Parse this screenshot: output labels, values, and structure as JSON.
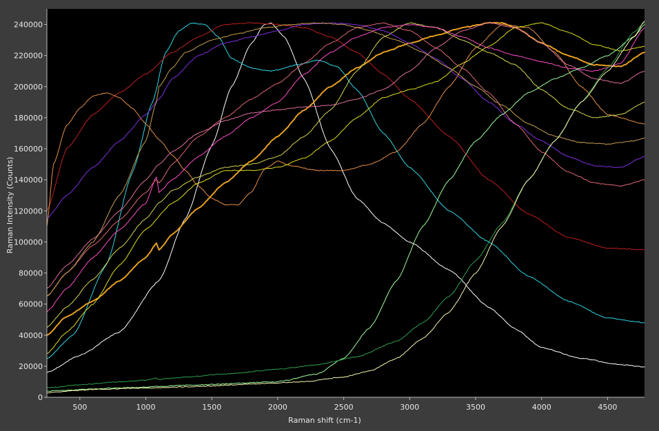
{
  "chart_data": {
    "type": "line",
    "title": "",
    "xlabel": "Raman shift (cm-1)",
    "ylabel": "Raman Intensity (Counts)",
    "xlim": [
      250,
      4780
    ],
    "ylim": [
      0,
      250000
    ],
    "x_ticks": [
      500,
      1000,
      1500,
      2000,
      2500,
      3000,
      3500,
      4000,
      4500
    ],
    "x_tick_labels": [
      "500",
      "1000",
      "1500",
      "2000",
      "2500",
      "3000",
      "3500",
      "4000",
      "4500"
    ],
    "y_ticks": [
      0,
      20000,
      40000,
      60000,
      80000,
      100000,
      120000,
      140000,
      160000,
      180000,
      200000,
      220000,
      240000
    ],
    "y_tick_labels": [
      "0",
      "20000",
      "40000",
      "60000",
      "80000",
      "100000",
      "120000",
      "140000",
      "160000",
      "180000",
      "200000",
      "220000",
      "240000"
    ],
    "background": "#000000",
    "grid": false,
    "legend": "none",
    "series": [
      {
        "color": "#ffffff",
        "width": 1,
        "x": [
          250,
          500,
          800,
          1100,
          1300,
          1500,
          1650,
          1800,
          1900,
          1950,
          2050,
          2200,
          2400,
          2600,
          2800,
          3000,
          3300,
          3600,
          3800,
          4000,
          4300,
          4600,
          4780
        ],
        "y": [
          16000,
          27000,
          42000,
          75000,
          115000,
          162000,
          200000,
          228000,
          240000,
          241000,
          232000,
          205000,
          160000,
          128000,
          112000,
          100000,
          82000,
          58000,
          44000,
          32000,
          25000,
          21000,
          19500
        ]
      },
      {
        "color": "#30d8e8",
        "width": 1,
        "x": [
          250,
          450,
          700,
          900,
          1050,
          1150,
          1250,
          1350,
          1450,
          1550,
          1650,
          1800,
          1950,
          2150,
          2300,
          2450,
          2600,
          2800,
          3000,
          3300,
          3600,
          3900,
          4200,
          4500,
          4780
        ],
        "y": [
          25000,
          40000,
          85000,
          145000,
          190000,
          222000,
          236000,
          241000,
          240000,
          232000,
          218000,
          212000,
          210000,
          214000,
          217000,
          213000,
          198000,
          170000,
          148000,
          120000,
          100000,
          78000,
          62000,
          51000,
          48000
        ]
      },
      {
        "color": "#c02020",
        "width": 1,
        "x": [
          250,
          400,
          600,
          800,
          1000,
          1200,
          1400,
          1600,
          1800,
          2000,
          2200,
          2400,
          2600,
          2800,
          3000,
          3300,
          3600,
          3900,
          4200,
          4500,
          4780
        ],
        "y": [
          120000,
          160000,
          182000,
          196000,
          208000,
          222000,
          232000,
          240000,
          241000,
          240000,
          238000,
          232000,
          222000,
          208000,
          192000,
          168000,
          140000,
          118000,
          103000,
          96000,
          95000
        ]
      },
      {
        "color": "#e89048",
        "width": 1,
        "x": [
          250,
          300,
          400,
          500,
          600,
          700,
          800,
          900,
          1000,
          1100,
          1200,
          1300,
          1400,
          1500,
          1600,
          1700,
          1800,
          1900,
          2000,
          2100,
          2300,
          2500,
          2700,
          2900,
          3100,
          3300,
          3500,
          3700,
          3900,
          4100,
          4300,
          4500,
          4780
        ],
        "y": [
          110000,
          150000,
          175000,
          186000,
          194000,
          196000,
          193000,
          186000,
          176000,
          166000,
          156000,
          146000,
          136000,
          128000,
          124000,
          124000,
          132000,
          147000,
          152000,
          149000,
          146000,
          146000,
          150000,
          158000,
          176000,
          200000,
          225000,
          240000,
          238000,
          222000,
          200000,
          182000,
          176000
        ]
      },
      {
        "color": "#e8a020",
        "width": 2,
        "x": [
          250,
          400,
          600,
          800,
          1000,
          1080,
          1100,
          1200,
          1400,
          1600,
          1800,
          2000,
          2200,
          2400,
          2600,
          2800,
          3000,
          3200,
          3400,
          3600,
          3700,
          3800,
          4000,
          4200,
          4400,
          4600,
          4780
        ],
        "y": [
          40000,
          52000,
          62000,
          75000,
          90000,
          99000,
          95000,
          105000,
          122000,
          138000,
          152000,
          168000,
          185000,
          200000,
          212000,
          222000,
          228000,
          233000,
          238000,
          241000,
          241000,
          238000,
          228000,
          220000,
          214000,
          213000,
          222000
        ]
      },
      {
        "color": "#e0e020",
        "width": 1,
        "x": [
          250,
          400,
          600,
          800,
          1000,
          1200,
          1400,
          1600,
          1800,
          2000,
          2200,
          2400,
          2600,
          2800,
          3000,
          3200,
          3400,
          3600,
          3800,
          4000,
          4200,
          4400,
          4600,
          4780
        ],
        "y": [
          28000,
          42000,
          60000,
          85000,
          108000,
          125000,
          138000,
          146000,
          146000,
          148000,
          154000,
          165000,
          180000,
          193000,
          198000,
          203000,
          215000,
          226000,
          238000,
          241000,
          235000,
          227000,
          223000,
          226000
        ]
      },
      {
        "color": "#d8d850",
        "width": 1,
        "x": [
          250,
          400,
          600,
          800,
          1000,
          1100,
          1200,
          1400,
          1600,
          1800,
          2000,
          2200,
          2400,
          2600,
          2800,
          3000,
          3200,
          3400,
          3600,
          3800,
          4000,
          4200,
          4400,
          4600,
          4780
        ],
        "y": [
          45000,
          58000,
          76000,
          96000,
          115000,
          125000,
          133000,
          142000,
          148000,
          150000,
          155000,
          168000,
          185000,
          210000,
          232000,
          241000,
          238000,
          230000,
          222000,
          214000,
          198000,
          186000,
          180000,
          182000,
          190000
        ]
      },
      {
        "color": "#ff50c8",
        "width": 1,
        "x": [
          250,
          400,
          600,
          800,
          1000,
          1080,
          1100,
          1200,
          1400,
          1600,
          1800,
          2000,
          2200,
          2400,
          2600,
          2800,
          3000,
          3200,
          3400,
          3600,
          3800,
          4000,
          4200,
          4400,
          4600,
          4780
        ],
        "y": [
          55000,
          70000,
          90000,
          108000,
          125000,
          142000,
          132000,
          140000,
          155000,
          168000,
          180000,
          190000,
          208000,
          222000,
          232000,
          238000,
          240000,
          238000,
          232000,
          225000,
          220000,
          216000,
          212000,
          210000,
          215000,
          238000
        ]
      },
      {
        "color": "#e070a0",
        "width": 1,
        "x": [
          250,
          400,
          600,
          800,
          1000,
          1100,
          1200,
          1400,
          1600,
          1800,
          2000,
          2200,
          2400,
          2600,
          2800,
          3000,
          3200,
          3400,
          3600,
          3800,
          4000,
          4200,
          4400,
          4600,
          4780
        ],
        "y": [
          70000,
          85000,
          102000,
          120000,
          140000,
          150000,
          158000,
          170000,
          178000,
          183000,
          185000,
          187000,
          188000,
          192000,
          198000,
          210000,
          225000,
          236000,
          241000,
          238000,
          228000,
          214000,
          205000,
          202000,
          210000
        ]
      },
      {
        "color": "#8030e0",
        "width": 1,
        "x": [
          250,
          400,
          600,
          800,
          1000,
          1100,
          1200,
          1400,
          1600,
          1800,
          2000,
          2200,
          2400,
          2600,
          2800,
          3000,
          3200,
          3400,
          3600,
          3800,
          4000,
          4200,
          4400,
          4600,
          4780
        ],
        "y": [
          115000,
          130000,
          148000,
          165000,
          182000,
          192000,
          205000,
          220000,
          228000,
          232000,
          236000,
          240000,
          241000,
          240000,
          236000,
          228000,
          218000,
          205000,
          190000,
          176000,
          165000,
          155000,
          149000,
          148000,
          155000
        ]
      },
      {
        "color": "#e06878",
        "width": 1,
        "x": [
          250,
          400,
          600,
          800,
          1000,
          1080,
          1100,
          1200,
          1400,
          1600,
          1800,
          2000,
          2200,
          2400,
          2600,
          2800,
          3000,
          3200,
          3400,
          3600,
          3800,
          4000,
          4200,
          4400,
          4600,
          4780
        ],
        "y": [
          65000,
          80000,
          98000,
          114000,
          132000,
          140000,
          138000,
          150000,
          168000,
          180000,
          192000,
          202000,
          215000,
          228000,
          238000,
          241000,
          236000,
          225000,
          212000,
          196000,
          176000,
          158000,
          145000,
          138000,
          136000,
          140000
        ]
      },
      {
        "color": "#c8a050",
        "width": 1,
        "x": [
          250,
          400,
          600,
          800,
          1000,
          1080,
          1100,
          1200,
          1300,
          1500,
          1700,
          1900,
          2100,
          2300,
          2500,
          2700,
          2900,
          3100,
          3300,
          3500,
          3700,
          3900,
          4100,
          4300,
          4500,
          4700,
          4780
        ],
        "y": [
          65000,
          80000,
          100000,
          130000,
          165000,
          190000,
          200000,
          212000,
          222000,
          230000,
          234000,
          238000,
          240000,
          241000,
          240000,
          236000,
          230000,
          222000,
          212000,
          200000,
          188000,
          176000,
          168000,
          164000,
          163000,
          165000,
          167000
        ]
      },
      {
        "color": "#a0ffa0",
        "width": 1,
        "x": [
          250,
          800,
          1400,
          2000,
          2300,
          2500,
          2700,
          2900,
          3100,
          3300,
          3500,
          3700,
          3900,
          4100,
          4300,
          4500,
          4700,
          4780
        ],
        "y": [
          4000,
          6000,
          8000,
          10000,
          15000,
          25000,
          45000,
          75000,
          110000,
          140000,
          165000,
          182000,
          196000,
          205000,
          212000,
          220000,
          232000,
          240000
        ]
      },
      {
        "color": "#30a050",
        "width": 1,
        "x": [
          250,
          500,
          800,
          1000,
          1080,
          1100,
          1300,
          1600,
          2000,
          2300,
          2600,
          2900,
          3100,
          3300,
          3500,
          3700,
          3900,
          4100,
          4300,
          4500,
          4700,
          4780
        ],
        "y": [
          6000,
          8000,
          10000,
          11000,
          12500,
          11500,
          13000,
          15000,
          18000,
          21000,
          26000,
          36000,
          48000,
          65000,
          88000,
          112000,
          140000,
          165000,
          190000,
          212000,
          235000,
          241000
        ]
      },
      {
        "color": "#f8f8b0",
        "width": 1,
        "x": [
          250,
          600,
          1000,
          1400,
          1800,
          2200,
          2500,
          2700,
          2900,
          3100,
          3300,
          3500,
          3700,
          3900,
          4100,
          4300,
          4500,
          4700,
          4780
        ],
        "y": [
          3000,
          5000,
          6000,
          7000,
          8500,
          10000,
          13000,
          17000,
          25000,
          38000,
          55000,
          80000,
          110000,
          140000,
          165000,
          190000,
          210000,
          232000,
          242000
        ]
      }
    ]
  }
}
